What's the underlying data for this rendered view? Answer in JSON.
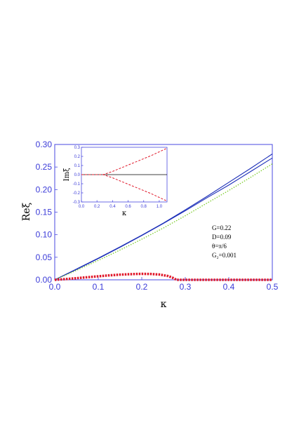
{
  "chart_data": [
    {
      "type": "line",
      "xlabel": "κ",
      "ylabel": "Reξ",
      "xlim": [
        0,
        0.5
      ],
      "ylim": [
        0,
        0.3
      ],
      "xticks": [
        "0.0",
        "0.1",
        "0.2",
        "0.3",
        "0.4",
        "0.5"
      ],
      "yticks": [
        "0.00",
        "0.05",
        "0.10",
        "0.15",
        "0.20",
        "0.25",
        "0.30"
      ],
      "annotations": [
        "G=0.22",
        "D=0.09",
        "θ=π/6",
        "G₂=0.001"
      ],
      "grid": false,
      "series": [
        {
          "style": "solid",
          "color": "#1c2fb8",
          "x": [
            0,
            0.05,
            0.1,
            0.15,
            0.2,
            0.25,
            0.3,
            0.35,
            0.4,
            0.45,
            0.5
          ],
          "y": [
            0,
            0.023,
            0.047,
            0.072,
            0.098,
            0.125,
            0.153,
            0.182,
            0.21,
            0.24,
            0.27
          ]
        },
        {
          "style": "solid",
          "color": "#1c2fb8",
          "x": [
            0,
            0.05,
            0.1,
            0.15,
            0.2,
            0.25,
            0.3,
            0.35,
            0.4,
            0.45,
            0.5
          ],
          "y": [
            0,
            0.024,
            0.048,
            0.073,
            0.099,
            0.126,
            0.155,
            0.185,
            0.216,
            0.247,
            0.279
          ]
        },
        {
          "style": "dotted",
          "color": "#7ccc2a",
          "x": [
            0,
            0.05,
            0.1,
            0.15,
            0.2,
            0.25,
            0.3,
            0.35,
            0.4,
            0.45,
            0.5
          ],
          "y": [
            0,
            0.021,
            0.043,
            0.066,
            0.09,
            0.115,
            0.142,
            0.17,
            0.198,
            0.227,
            0.257
          ]
        },
        {
          "style": "thick-dotted",
          "color": "#e0182a",
          "x": [
            0,
            0.03,
            0.06,
            0.09,
            0.12,
            0.15,
            0.18,
            0.2,
            0.22,
            0.24,
            0.26,
            0.27,
            0.28,
            0.3,
            0.4,
            0.5
          ],
          "y": [
            0,
            0.002,
            0.0045,
            0.007,
            0.0095,
            0.0115,
            0.0128,
            0.0132,
            0.013,
            0.0118,
            0.0085,
            0.005,
            0.0,
            0.0,
            0.0,
            0.0
          ]
        }
      ]
    },
    {
      "type": "line",
      "xlabel": "κ",
      "ylabel": "Imξ",
      "xlim": [
        0,
        1.1
      ],
      "ylim": [
        -0.3,
        0.3
      ],
      "xticks": [
        "0.0",
        "0.2",
        "0.4",
        "0.6",
        "0.8",
        "1.0"
      ],
      "yticks": [
        "-0.3",
        "-0.2",
        "-0.1",
        "0.0",
        "0.1",
        "0.2",
        "0.3"
      ],
      "grid": false,
      "series": [
        {
          "style": "solid",
          "color": "#000000",
          "x": [
            0,
            1.1
          ],
          "y": [
            0,
            0
          ]
        },
        {
          "style": "dashed",
          "color": "#e0182a",
          "x": [
            0,
            0.1,
            0.2,
            0.28,
            0.4,
            0.5,
            0.6,
            0.7,
            0.8,
            0.9,
            1.0,
            1.1
          ],
          "y": [
            0,
            0,
            0,
            0,
            0.035,
            0.07,
            0.105,
            0.14,
            0.175,
            0.21,
            0.25,
            0.29
          ]
        },
        {
          "style": "dashed",
          "color": "#e0182a",
          "x": [
            0,
            0.1,
            0.2,
            0.28,
            0.4,
            0.5,
            0.6,
            0.7,
            0.8,
            0.9,
            1.0,
            1.1
          ],
          "y": [
            0,
            0,
            0,
            0,
            -0.035,
            -0.07,
            -0.105,
            -0.14,
            -0.175,
            -0.21,
            -0.25,
            -0.29
          ]
        }
      ]
    }
  ]
}
